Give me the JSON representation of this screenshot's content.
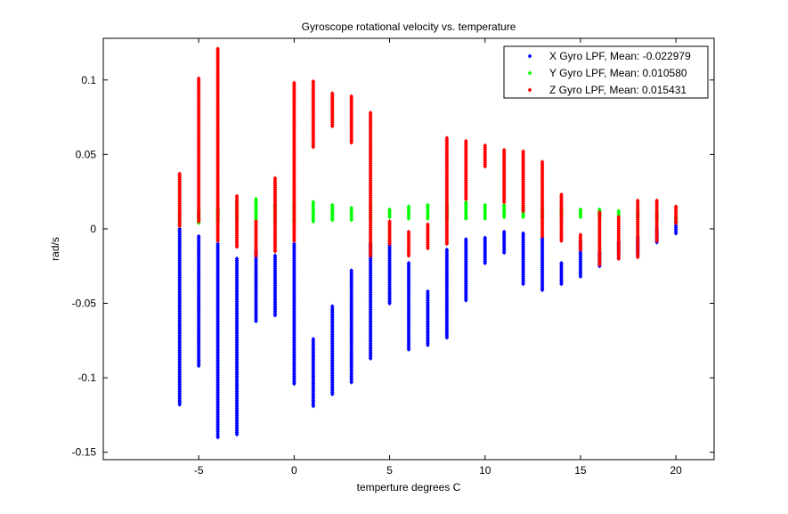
{
  "chart_data": {
    "type": "scatter",
    "title": "Gyroscope rotational velocity vs. temperature",
    "xlabel": "temperture degrees C",
    "ylabel": "rad/s",
    "xlim": [
      -10,
      22
    ],
    "ylim": [
      -0.155,
      0.128
    ],
    "xticks": [
      -5,
      0,
      5,
      10,
      15,
      20
    ],
    "xtick_labels": [
      "-5",
      "0",
      "5",
      "10",
      "15",
      "20"
    ],
    "yticks": [
      -0.15,
      -0.1,
      -0.05,
      0,
      0.05,
      0.1
    ],
    "ytick_labels": [
      "-0.15",
      "-0.1",
      "-0.05",
      "0",
      "0.05",
      "0.1"
    ],
    "grid": false,
    "legend_position": "top-right",
    "series": [
      {
        "name": "X Gyro LPF, Mean: -0.022979",
        "color": "#0000ff",
        "ranges": [
          {
            "x": -6,
            "ymin": -0.118,
            "ymax": 0.0
          },
          {
            "x": -5,
            "ymin": -0.092,
            "ymax": -0.005
          },
          {
            "x": -4,
            "ymin": -0.14,
            "ymax": -0.01
          },
          {
            "x": -3,
            "ymin": -0.138,
            "ymax": -0.02
          },
          {
            "x": -2,
            "ymin": -0.062,
            "ymax": -0.015
          },
          {
            "x": -1,
            "ymin": -0.058,
            "ymax": -0.018
          },
          {
            "x": 0,
            "ymin": -0.104,
            "ymax": -0.01
          },
          {
            "x": 1,
            "ymin": -0.119,
            "ymax": -0.074
          },
          {
            "x": 2,
            "ymin": -0.111,
            "ymax": -0.052
          },
          {
            "x": 3,
            "ymin": -0.103,
            "ymax": -0.028
          },
          {
            "x": 4,
            "ymin": -0.087,
            "ymax": -0.01
          },
          {
            "x": 5,
            "ymin": -0.05,
            "ymax": -0.01
          },
          {
            "x": 6,
            "ymin": -0.081,
            "ymax": -0.023
          },
          {
            "x": 7,
            "ymin": -0.078,
            "ymax": -0.042
          },
          {
            "x": 8,
            "ymin": -0.073,
            "ymax": -0.014
          },
          {
            "x": 9,
            "ymin": -0.048,
            "ymax": -0.007
          },
          {
            "x": 10,
            "ymin": -0.023,
            "ymax": -0.006
          },
          {
            "x": 11,
            "ymin": -0.016,
            "ymax": -0.002
          },
          {
            "x": 12,
            "ymin": -0.037,
            "ymax": -0.003
          },
          {
            "x": 13,
            "ymin": -0.041,
            "ymax": -0.006
          },
          {
            "x": 14,
            "ymin": -0.037,
            "ymax": -0.023
          },
          {
            "x": 15,
            "ymin": -0.032,
            "ymax": -0.008
          },
          {
            "x": 16,
            "ymin": -0.025,
            "ymax": -0.016
          },
          {
            "x": 17,
            "ymin": -0.02,
            "ymax": -0.009
          },
          {
            "x": 18,
            "ymin": -0.018,
            "ymax": -0.006
          },
          {
            "x": 19,
            "ymin": -0.009,
            "ymax": 0.0
          },
          {
            "x": 20,
            "ymin": -0.003,
            "ymax": 0.005
          }
        ]
      },
      {
        "name": "Y Gyro LPF, Mean: 0.010580",
        "color": "#00ff00",
        "ranges": [
          {
            "x": -6,
            "ymin": 0.002,
            "ymax": 0.012
          },
          {
            "x": -5,
            "ymin": 0.004,
            "ymax": 0.012
          },
          {
            "x": -4,
            "ymin": 0.005,
            "ymax": 0.014
          },
          {
            "x": -3,
            "ymin": 0.006,
            "ymax": 0.018
          },
          {
            "x": -2,
            "ymin": 0.006,
            "ymax": 0.02
          },
          {
            "x": -1,
            "ymin": 0.005,
            "ymax": 0.016
          },
          {
            "x": 0,
            "ymin": 0.005,
            "ymax": 0.017
          },
          {
            "x": 1,
            "ymin": 0.005,
            "ymax": 0.018
          },
          {
            "x": 2,
            "ymin": 0.006,
            "ymax": 0.016
          },
          {
            "x": 3,
            "ymin": 0.006,
            "ymax": 0.014
          },
          {
            "x": 4,
            "ymin": 0.007,
            "ymax": 0.015
          },
          {
            "x": 5,
            "ymin": 0.008,
            "ymax": 0.013
          },
          {
            "x": 6,
            "ymin": 0.007,
            "ymax": 0.015
          },
          {
            "x": 7,
            "ymin": 0.007,
            "ymax": 0.016
          },
          {
            "x": 8,
            "ymin": 0.007,
            "ymax": 0.017
          },
          {
            "x": 9,
            "ymin": 0.007,
            "ymax": 0.018
          },
          {
            "x": 10,
            "ymin": 0.007,
            "ymax": 0.016
          },
          {
            "x": 11,
            "ymin": 0.008,
            "ymax": 0.016
          },
          {
            "x": 12,
            "ymin": 0.008,
            "ymax": 0.015
          },
          {
            "x": 13,
            "ymin": 0.008,
            "ymax": 0.015
          },
          {
            "x": 14,
            "ymin": 0.008,
            "ymax": 0.014
          },
          {
            "x": 15,
            "ymin": 0.008,
            "ymax": 0.013
          },
          {
            "x": 16,
            "ymin": 0.008,
            "ymax": 0.013
          },
          {
            "x": 17,
            "ymin": 0.008,
            "ymax": 0.012
          },
          {
            "x": 18,
            "ymin": 0.008,
            "ymax": 0.012
          },
          {
            "x": 19,
            "ymin": 0.007,
            "ymax": 0.011
          },
          {
            "x": 20,
            "ymin": 0.004,
            "ymax": 0.008
          }
        ]
      },
      {
        "name": "Z Gyro LPF, Mean: 0.015431",
        "color": "#ff0000",
        "ranges": [
          {
            "x": -6,
            "ymin": 0.002,
            "ymax": 0.037
          },
          {
            "x": -5,
            "ymin": 0.005,
            "ymax": 0.101
          },
          {
            "x": -4,
            "ymin": -0.008,
            "ymax": 0.121
          },
          {
            "x": -3,
            "ymin": -0.012,
            "ymax": 0.022
          },
          {
            "x": -2,
            "ymin": -0.018,
            "ymax": 0.005
          },
          {
            "x": -1,
            "ymin": -0.015,
            "ymax": 0.034
          },
          {
            "x": 0,
            "ymin": -0.008,
            "ymax": 0.098
          },
          {
            "x": 1,
            "ymin": 0.055,
            "ymax": 0.099
          },
          {
            "x": 2,
            "ymin": 0.069,
            "ymax": 0.091
          },
          {
            "x": 3,
            "ymin": 0.058,
            "ymax": 0.089
          },
          {
            "x": 4,
            "ymin": -0.018,
            "ymax": 0.078
          },
          {
            "x": 5,
            "ymin": -0.01,
            "ymax": 0.005
          },
          {
            "x": 6,
            "ymin": -0.018,
            "ymax": -0.002
          },
          {
            "x": 7,
            "ymin": -0.013,
            "ymax": 0.003
          },
          {
            "x": 8,
            "ymin": -0.01,
            "ymax": 0.061
          },
          {
            "x": 9,
            "ymin": 0.02,
            "ymax": 0.059
          },
          {
            "x": 10,
            "ymin": 0.042,
            "ymax": 0.056
          },
          {
            "x": 11,
            "ymin": 0.018,
            "ymax": 0.053
          },
          {
            "x": 12,
            "ymin": 0.012,
            "ymax": 0.052
          },
          {
            "x": 13,
            "ymin": -0.005,
            "ymax": 0.045
          },
          {
            "x": 14,
            "ymin": -0.008,
            "ymax": 0.023
          },
          {
            "x": 15,
            "ymin": -0.014,
            "ymax": -0.004
          },
          {
            "x": 16,
            "ymin": -0.024,
            "ymax": 0.011
          },
          {
            "x": 17,
            "ymin": -0.02,
            "ymax": 0.008
          },
          {
            "x": 18,
            "ymin": -0.019,
            "ymax": 0.019
          },
          {
            "x": 19,
            "ymin": -0.008,
            "ymax": 0.019
          },
          {
            "x": 20,
            "ymin": 0.004,
            "ymax": 0.015
          }
        ]
      }
    ]
  }
}
